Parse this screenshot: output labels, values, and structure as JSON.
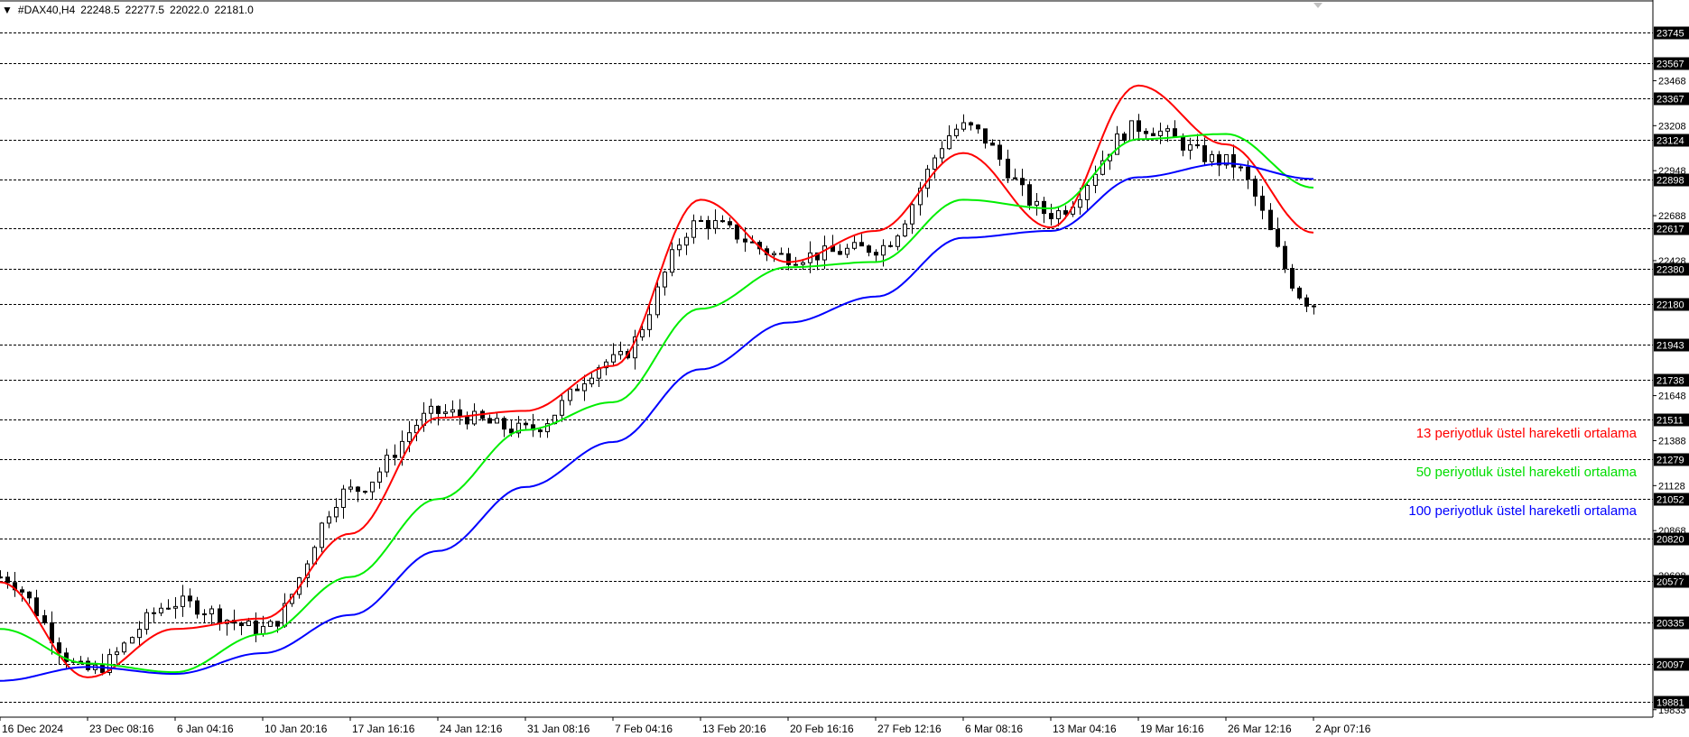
{
  "header": {
    "menu_glyph": "▼",
    "symbol_timeframe": "#DAX40,H4",
    "ohlc": [
      "22248.5",
      "22277.5",
      "22022.0",
      "22181.0"
    ]
  },
  "legend": [
    {
      "label": "13 periyotluk üstel hareketli ortalama",
      "color": "#ff0000"
    },
    {
      "label": "50 periyotluk üstel hareketli ortalama",
      "color": "#00ee00"
    },
    {
      "label": "100 periyotluk üstel hareketli ortalama",
      "color": "#0000ff"
    }
  ],
  "chart_data": {
    "type": "line",
    "title": "#DAX40,H4",
    "price_range": [
      19790,
      23830
    ],
    "x_dates": [
      "16 Dec 2024",
      "23 Dec 08:16",
      "6 Jan 04:16",
      "10 Jan 20:16",
      "17 Jan 16:16",
      "24 Jan 12:16",
      "31 Jan 08:16",
      "7 Feb 04:16",
      "13 Feb 20:16",
      "20 Feb 16:16",
      "27 Feb 12:16",
      "6 Mar 08:16",
      "13 Mar 04:16",
      "19 Mar 16:16",
      "26 Mar 12:16",
      "2 Apr 07:16"
    ],
    "y_tick_labels": [
      "23468",
      "23208",
      "22948",
      "22688",
      "22428",
      "21648",
      "21388",
      "21128",
      "20868",
      "20608",
      "19833"
    ],
    "level_labels": [
      "23745",
      "23567",
      "23367",
      "23124",
      "22898",
      "22617",
      "22380",
      "22180",
      "21943",
      "21738",
      "21511",
      "21279",
      "21052",
      "20820",
      "20577",
      "20335",
      "20097",
      "19881"
    ],
    "level_values": [
      23745,
      23567,
      23367,
      23124,
      22898,
      22617,
      22380,
      22180,
      21943,
      21738,
      21511,
      21279,
      21052,
      20820,
      20577,
      20335,
      20097,
      19881
    ],
    "grid_horizontal_dashed": true,
    "legend_position": "right",
    "price_series": [
      {
        "date": "16 Dec 2024",
        "value": 20600
      },
      {
        "date": "23 Dec 08:16",
        "value": 20060
      },
      {
        "date": "6 Jan 04:16",
        "value": 20450
      },
      {
        "date": "10 Jan 20:16",
        "value": 20300
      },
      {
        "date": "17 Jan 16:16",
        "value": 21100
      },
      {
        "date": "24 Jan 12:16",
        "value": 21550
      },
      {
        "date": "31 Jan 08:16",
        "value": 21450
      },
      {
        "date": "7 Feb 04:16",
        "value": 21850
      },
      {
        "date": "13 Feb 20:16",
        "value": 22650
      },
      {
        "date": "20 Feb 16:16",
        "value": 22450
      },
      {
        "date": "27 Feb 12:16",
        "value": 22500
      },
      {
        "date": "6 Mar 08:16",
        "value": 23200
      },
      {
        "date": "13 Mar 04:16",
        "value": 22700
      },
      {
        "date": "19 Mar 16:16",
        "value": 23200
      },
      {
        "date": "26 Mar 12:16",
        "value": 23000
      },
      {
        "date": "2 Apr 07:16",
        "value": 22181
      }
    ],
    "series": [
      {
        "name": "13 periyotluk üstel hareketli ortalama",
        "color": "#ff0000",
        "x": [
          "16 Dec 2024",
          "23 Dec 08:16",
          "6 Jan 04:16",
          "10 Jan 20:16",
          "17 Jan 16:16",
          "24 Jan 12:16",
          "31 Jan 08:16",
          "7 Feb 04:16",
          "13 Feb 20:16",
          "20 Feb 16:16",
          "27 Feb 12:16",
          "6 Mar 08:16",
          "13 Mar 04:16",
          "19 Mar 16:16",
          "26 Mar 12:16",
          "2 Apr 07:16"
        ],
        "values": [
          20570,
          20020,
          20300,
          20360,
          20850,
          21520,
          21560,
          21820,
          22780,
          22420,
          22600,
          23050,
          22620,
          23440,
          23100,
          22590
        ]
      },
      {
        "name": "50 periyotluk üstel hareketli ortalama",
        "color": "#00ee00",
        "x": [
          "16 Dec 2024",
          "23 Dec 08:16",
          "6 Jan 04:16",
          "10 Jan 20:16",
          "17 Jan 16:16",
          "24 Jan 12:16",
          "31 Jan 08:16",
          "7 Feb 04:16",
          "13 Feb 20:16",
          "20 Feb 16:16",
          "27 Feb 12:16",
          "6 Mar 08:16",
          "13 Mar 04:16",
          "19 Mar 16:16",
          "26 Mar 12:16",
          "2 Apr 07:16"
        ],
        "values": [
          20300,
          20100,
          20050,
          20270,
          20600,
          21050,
          21450,
          21610,
          22150,
          22390,
          22420,
          22780,
          22730,
          23130,
          23160,
          22850
        ]
      },
      {
        "name": "100 periyotluk üstel hareketli ortalama",
        "color": "#0000ff",
        "x": [
          "16 Dec 2024",
          "23 Dec 08:16",
          "6 Jan 04:16",
          "10 Jan 20:16",
          "17 Jan 16:16",
          "24 Jan 12:16",
          "31 Jan 08:16",
          "7 Feb 04:16",
          "13 Feb 20:16",
          "20 Feb 16:16",
          "27 Feb 12:16",
          "6 Mar 08:16",
          "13 Mar 04:16",
          "19 Mar 16:16",
          "26 Mar 12:16",
          "2 Apr 07:16"
        ],
        "values": [
          20000,
          20080,
          20040,
          20160,
          20380,
          20750,
          21120,
          21380,
          21800,
          22070,
          22220,
          22560,
          22600,
          22910,
          22990,
          22900
        ]
      }
    ]
  }
}
